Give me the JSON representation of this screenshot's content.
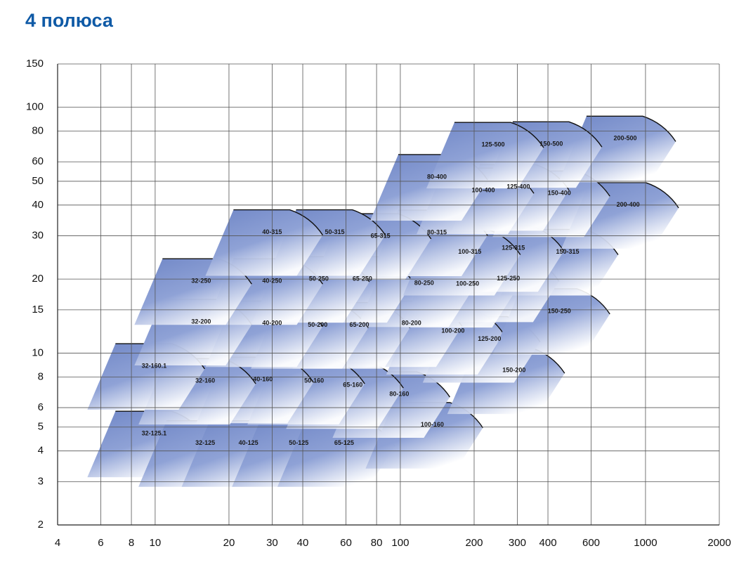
{
  "chart_data": {
    "type": "region",
    "title": "4 полюса",
    "xscale": "log",
    "yscale": "log",
    "grid": true,
    "color": "#6f86c6",
    "xlim": [
      4,
      2000
    ],
    "ylim": [
      2,
      150
    ],
    "xticks": [
      4,
      6,
      8,
      10,
      20,
      30,
      40,
      60,
      80,
      100,
      200,
      300,
      400,
      600,
      1000,
      2000
    ],
    "yticks": [
      2,
      3,
      4,
      5,
      6,
      8,
      10,
      15,
      20,
      30,
      40,
      50,
      60,
      80,
      100,
      150
    ],
    "regions": [
      {
        "name": "32-125.1",
        "x": 9.9,
        "y": 4.7
      },
      {
        "name": "32-125",
        "x": 16,
        "y": 4.3
      },
      {
        "name": "40-125",
        "x": 24,
        "y": 4.3
      },
      {
        "name": "50-125",
        "x": 38.5,
        "y": 4.3
      },
      {
        "name": "65-125",
        "x": 59,
        "y": 4.3
      },
      {
        "name": "100-160",
        "x": 135,
        "y": 5.1
      },
      {
        "name": "80-160",
        "x": 99,
        "y": 6.8
      },
      {
        "name": "65-160",
        "x": 64,
        "y": 7.4
      },
      {
        "name": "50-160",
        "x": 44.5,
        "y": 7.7
      },
      {
        "name": "40-160",
        "x": 27.5,
        "y": 7.8
      },
      {
        "name": "32-160",
        "x": 16,
        "y": 7.7
      },
      {
        "name": "32-160.1",
        "x": 9.9,
        "y": 8.85
      },
      {
        "name": "150-200",
        "x": 291,
        "y": 8.5
      },
      {
        "name": "125-200",
        "x": 231,
        "y": 11.4
      },
      {
        "name": "100-200",
        "x": 164,
        "y": 12.3
      },
      {
        "name": "80-200",
        "x": 111,
        "y": 13.2
      },
      {
        "name": "65-200",
        "x": 68,
        "y": 13
      },
      {
        "name": "50-200",
        "x": 46,
        "y": 13
      },
      {
        "name": "40-200",
        "x": 30,
        "y": 13.2
      },
      {
        "name": "32-200",
        "x": 15.4,
        "y": 13.4
      },
      {
        "name": "150-250",
        "x": 445,
        "y": 14.8
      },
      {
        "name": "125-250",
        "x": 276,
        "y": 20.1
      },
      {
        "name": "100-250",
        "x": 188,
        "y": 19.1
      },
      {
        "name": "80-250",
        "x": 125,
        "y": 19.2
      },
      {
        "name": "65-250",
        "x": 70,
        "y": 20
      },
      {
        "name": "50-250",
        "x": 46.5,
        "y": 20
      },
      {
        "name": "40-250",
        "x": 30,
        "y": 19.6
      },
      {
        "name": "32-250",
        "x": 15.4,
        "y": 19.6
      },
      {
        "name": "150-315",
        "x": 481,
        "y": 25.8
      },
      {
        "name": "125-315",
        "x": 289,
        "y": 26.7
      },
      {
        "name": "100-315",
        "x": 192,
        "y": 25.8
      },
      {
        "name": "80-315",
        "x": 141,
        "y": 30.9
      },
      {
        "name": "65-315",
        "x": 83,
        "y": 29.9
      },
      {
        "name": "50-315",
        "x": 54,
        "y": 31
      },
      {
        "name": "40-315",
        "x": 30,
        "y": 31
      },
      {
        "name": "200-400",
        "x": 849,
        "y": 40
      },
      {
        "name": "150-400",
        "x": 445,
        "y": 44.6
      },
      {
        "name": "125-400",
        "x": 303,
        "y": 47.3
      },
      {
        "name": "100-400",
        "x": 218,
        "y": 45.8
      },
      {
        "name": "80-400",
        "x": 141,
        "y": 52
      },
      {
        "name": "200-500",
        "x": 826,
        "y": 74.5
      },
      {
        "name": "150-500",
        "x": 413,
        "y": 70.7
      },
      {
        "name": "125-500",
        "x": 239,
        "y": 70.3
      }
    ]
  }
}
